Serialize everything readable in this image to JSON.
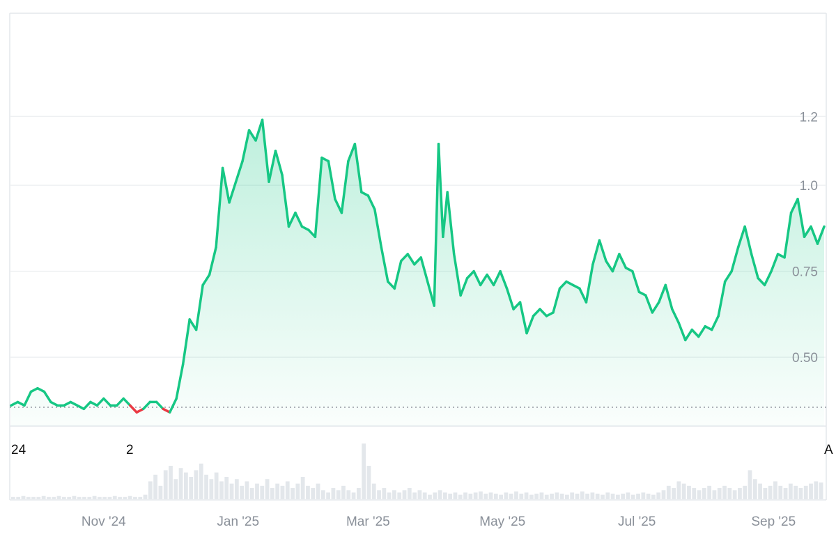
{
  "chart_data": {
    "type": "area",
    "title": "",
    "xlabel": "",
    "ylabel": "",
    "x_range": [
      "2024-09-20",
      "2025-09-24"
    ],
    "ylim": [
      0.3,
      1.5
    ],
    "y_ticks": [
      {
        "value": 0.5,
        "label": "0.50"
      },
      {
        "value": 0.75,
        "label": "0.75"
      },
      {
        "value": 1.0,
        "label": "1.0"
      },
      {
        "value": 1.2,
        "label": "1.2"
      }
    ],
    "x_ticks": [
      {
        "date": "2024-11-01",
        "label": "Nov '24"
      },
      {
        "date": "2025-01-01",
        "label": "Jan '25"
      },
      {
        "date": "2025-03-01",
        "label": "Mar '25"
      },
      {
        "date": "2025-05-01",
        "label": "May '25"
      },
      {
        "date": "2025-07-01",
        "label": "Jul '25"
      },
      {
        "date": "2025-09-01",
        "label": "Sep '25"
      }
    ],
    "edge_labels": {
      "left": "24",
      "middle": "2",
      "right": "A"
    },
    "baseline_value": 0.355,
    "colors": {
      "up": "#16c784",
      "down": "#ea3943",
      "grid": "#eef0f2",
      "volume": "#e3e7eb",
      "baseline": "#8a9099"
    },
    "grid": true,
    "series": [
      {
        "values": [
          [
            "2024-09-20",
            0.36
          ],
          [
            "2024-09-23",
            0.37
          ],
          [
            "2024-09-26",
            0.36
          ],
          [
            "2024-09-29",
            0.4
          ],
          [
            "2024-10-02",
            0.41
          ],
          [
            "2024-10-05",
            0.4
          ],
          [
            "2024-10-08",
            0.37
          ],
          [
            "2024-10-11",
            0.36
          ],
          [
            "2024-10-14",
            0.36
          ],
          [
            "2024-10-17",
            0.37
          ],
          [
            "2024-10-20",
            0.36
          ],
          [
            "2024-10-23",
            0.35
          ],
          [
            "2024-10-26",
            0.37
          ],
          [
            "2024-10-29",
            0.36
          ],
          [
            "2024-11-01",
            0.38
          ],
          [
            "2024-11-04",
            0.36
          ],
          [
            "2024-11-07",
            0.36
          ],
          [
            "2024-11-10",
            0.38
          ],
          [
            "2024-11-13",
            0.36
          ],
          [
            "2024-11-16",
            0.34
          ],
          [
            "2024-11-19",
            0.35
          ],
          [
            "2024-11-22",
            0.37
          ],
          [
            "2024-11-25",
            0.37
          ],
          [
            "2024-11-28",
            0.35
          ],
          [
            "2024-12-01",
            0.34
          ],
          [
            "2024-12-04",
            0.38
          ],
          [
            "2024-12-07",
            0.48
          ],
          [
            "2024-12-10",
            0.61
          ],
          [
            "2024-12-13",
            0.58
          ],
          [
            "2024-12-16",
            0.71
          ],
          [
            "2024-12-19",
            0.74
          ],
          [
            "2024-12-22",
            0.82
          ],
          [
            "2024-12-25",
            1.05
          ],
          [
            "2024-12-28",
            0.95
          ],
          [
            "2024-12-31",
            1.01
          ],
          [
            "2025-01-03",
            1.07
          ],
          [
            "2025-01-06",
            1.16
          ],
          [
            "2025-01-09",
            1.13
          ],
          [
            "2025-01-12",
            1.19
          ],
          [
            "2025-01-15",
            1.01
          ],
          [
            "2025-01-18",
            1.1
          ],
          [
            "2025-01-21",
            1.03
          ],
          [
            "2025-01-24",
            0.88
          ],
          [
            "2025-01-27",
            0.92
          ],
          [
            "2025-01-30",
            0.88
          ],
          [
            "2025-02-02",
            0.87
          ],
          [
            "2025-02-05",
            0.85
          ],
          [
            "2025-02-08",
            1.08
          ],
          [
            "2025-02-11",
            1.07
          ],
          [
            "2025-02-14",
            0.96
          ],
          [
            "2025-02-17",
            0.92
          ],
          [
            "2025-02-20",
            1.07
          ],
          [
            "2025-02-23",
            1.12
          ],
          [
            "2025-02-26",
            0.98
          ],
          [
            "2025-03-01",
            0.97
          ],
          [
            "2025-03-04",
            0.93
          ],
          [
            "2025-03-07",
            0.82
          ],
          [
            "2025-03-10",
            0.72
          ],
          [
            "2025-03-13",
            0.7
          ],
          [
            "2025-03-16",
            0.78
          ],
          [
            "2025-03-19",
            0.8
          ],
          [
            "2025-03-22",
            0.77
          ],
          [
            "2025-03-25",
            0.79
          ],
          [
            "2025-03-28",
            0.72
          ],
          [
            "2025-03-31",
            0.65
          ],
          [
            "2025-04-02",
            1.12
          ],
          [
            "2025-04-04",
            0.85
          ],
          [
            "2025-04-06",
            0.98
          ],
          [
            "2025-04-09",
            0.8
          ],
          [
            "2025-04-12",
            0.68
          ],
          [
            "2025-04-15",
            0.73
          ],
          [
            "2025-04-18",
            0.75
          ],
          [
            "2025-04-21",
            0.71
          ],
          [
            "2025-04-24",
            0.74
          ],
          [
            "2025-04-27",
            0.71
          ],
          [
            "2025-04-30",
            0.75
          ],
          [
            "2025-05-03",
            0.7
          ],
          [
            "2025-05-06",
            0.64
          ],
          [
            "2025-05-09",
            0.66
          ],
          [
            "2025-05-12",
            0.57
          ],
          [
            "2025-05-15",
            0.62
          ],
          [
            "2025-05-18",
            0.64
          ],
          [
            "2025-05-21",
            0.62
          ],
          [
            "2025-05-24",
            0.63
          ],
          [
            "2025-05-27",
            0.7
          ],
          [
            "2025-05-30",
            0.72
          ],
          [
            "2025-06-02",
            0.71
          ],
          [
            "2025-06-05",
            0.7
          ],
          [
            "2025-06-08",
            0.66
          ],
          [
            "2025-06-11",
            0.77
          ],
          [
            "2025-06-14",
            0.84
          ],
          [
            "2025-06-17",
            0.78
          ],
          [
            "2025-06-20",
            0.75
          ],
          [
            "2025-06-23",
            0.8
          ],
          [
            "2025-06-26",
            0.76
          ],
          [
            "2025-06-29",
            0.75
          ],
          [
            "2025-07-02",
            0.69
          ],
          [
            "2025-07-05",
            0.68
          ],
          [
            "2025-07-08",
            0.63
          ],
          [
            "2025-07-11",
            0.66
          ],
          [
            "2025-07-14",
            0.71
          ],
          [
            "2025-07-17",
            0.64
          ],
          [
            "2025-07-20",
            0.6
          ],
          [
            "2025-07-23",
            0.55
          ],
          [
            "2025-07-26",
            0.58
          ],
          [
            "2025-07-29",
            0.56
          ],
          [
            "2025-08-01",
            0.59
          ],
          [
            "2025-08-04",
            0.58
          ],
          [
            "2025-08-07",
            0.62
          ],
          [
            "2025-08-10",
            0.72
          ],
          [
            "2025-08-13",
            0.75
          ],
          [
            "2025-08-16",
            0.82
          ],
          [
            "2025-08-19",
            0.88
          ],
          [
            "2025-08-22",
            0.8
          ],
          [
            "2025-08-25",
            0.73
          ],
          [
            "2025-08-28",
            0.71
          ],
          [
            "2025-08-31",
            0.75
          ],
          [
            "2025-09-03",
            0.8
          ],
          [
            "2025-09-06",
            0.79
          ],
          [
            "2025-09-09",
            0.92
          ],
          [
            "2025-09-12",
            0.96
          ],
          [
            "2025-09-15",
            0.85
          ],
          [
            "2025-09-18",
            0.88
          ],
          [
            "2025-09-21",
            0.83
          ],
          [
            "2025-09-24",
            0.88
          ]
        ]
      }
    ],
    "volume": [
      2,
      2,
      3,
      2,
      2,
      2,
      3,
      2,
      2,
      3,
      2,
      2,
      3,
      2,
      2,
      2,
      3,
      2,
      2,
      2,
      3,
      2,
      2,
      3,
      2,
      2,
      4,
      16,
      22,
      12,
      26,
      30,
      18,
      28,
      24,
      20,
      26,
      32,
      22,
      18,
      24,
      16,
      20,
      14,
      18,
      12,
      16,
      10,
      14,
      12,
      18,
      10,
      14,
      12,
      16,
      10,
      14,
      20,
      12,
      10,
      14,
      8,
      6,
      10,
      8,
      12,
      8,
      6,
      10,
      50,
      30,
      14,
      8,
      10,
      6,
      8,
      6,
      8,
      10,
      6,
      8,
      6,
      4,
      6,
      8,
      6,
      5,
      6,
      4,
      6,
      5,
      6,
      7,
      5,
      6,
      5,
      4,
      6,
      5,
      7,
      5,
      6,
      4,
      5,
      6,
      4,
      5,
      6,
      5,
      4,
      6,
      5,
      7,
      5,
      6,
      5,
      4,
      6,
      5,
      4,
      5,
      6,
      4,
      5,
      6,
      5,
      4,
      6,
      8,
      12,
      10,
      16,
      14,
      12,
      10,
      8,
      10,
      12,
      8,
      10,
      12,
      10,
      8,
      10,
      12,
      26,
      18,
      14,
      10,
      12,
      16,
      12,
      10,
      14,
      12,
      10,
      12,
      14,
      16,
      15
    ]
  }
}
